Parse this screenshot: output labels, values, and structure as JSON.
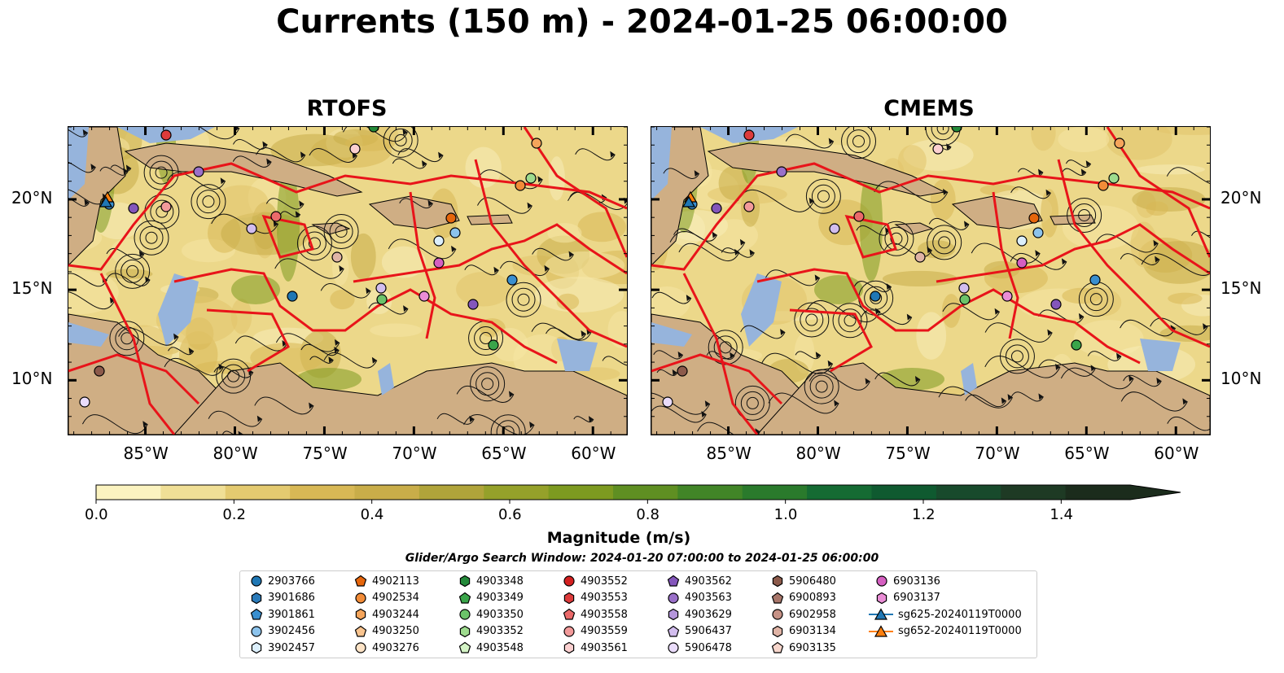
{
  "title": "Currents (150 m) - 2024-01-25 06:00:00",
  "panels": [
    {
      "title": "RTOFS"
    },
    {
      "title": "CMEMS"
    }
  ],
  "axes": {
    "lon_labels": [
      "85°W",
      "80°W",
      "75°W",
      "70°W",
      "65°W",
      "60°W"
    ],
    "lat_labels": [
      "20°N",
      "15°N",
      "10°N"
    ]
  },
  "colorbar": {
    "ticks": [
      "0.0",
      "0.2",
      "0.4",
      "0.6",
      "0.8",
      "1.0",
      "1.2",
      "1.4"
    ],
    "label": "Magnitude (m/s)",
    "colors": [
      "#fbf3c0",
      "#f0df96",
      "#e4ca70",
      "#d8b855",
      "#c9ad49",
      "#b0a43a",
      "#95a12a",
      "#7d9a20",
      "#5f8f22",
      "#418527",
      "#2a7a2c",
      "#156b33",
      "#0f5a30",
      "#184a2c",
      "#1e3a24",
      "#1b2c1c"
    ]
  },
  "search_window": "Glider/Argo Search Window: 2024-01-20 07:00:00 to 2024-01-25 06:00:00",
  "legend": [
    {
      "label": "2903766",
      "marker": "circle",
      "color": "#1f77b4"
    },
    {
      "label": "3901686",
      "marker": "hexagon",
      "color": "#2b7bba"
    },
    {
      "label": "3901861",
      "marker": "pentagon",
      "color": "#3a8fcf"
    },
    {
      "label": "3902456",
      "marker": "circle",
      "color": "#8cc3ec"
    },
    {
      "label": "3902457",
      "marker": "hexagon",
      "color": "#dceffc"
    },
    {
      "label": "4902113",
      "marker": "pentagon",
      "color": "#e6660c"
    },
    {
      "label": "4902534",
      "marker": "circle",
      "color": "#f28c38"
    },
    {
      "label": "4903244",
      "marker": "hexagon",
      "color": "#f5a55b"
    },
    {
      "label": "4903250",
      "marker": "pentagon",
      "color": "#f9c48f"
    },
    {
      "label": "4903276",
      "marker": "circle",
      "color": "#fde3c6"
    },
    {
      "label": "4903348",
      "marker": "hexagon",
      "color": "#248a3a"
    },
    {
      "label": "4903349",
      "marker": "pentagon",
      "color": "#3aa54a"
    },
    {
      "label": "4903350",
      "marker": "circle",
      "color": "#6cc36a"
    },
    {
      "label": "4903352",
      "marker": "hexagon",
      "color": "#9edb8e"
    },
    {
      "label": "4903548",
      "marker": "pentagon",
      "color": "#d4f4c6"
    },
    {
      "label": "4903552",
      "marker": "circle",
      "color": "#d42020"
    },
    {
      "label": "4903553",
      "marker": "hexagon",
      "color": "#dd3b3b"
    },
    {
      "label": "4903558",
      "marker": "pentagon",
      "color": "#eb6a6a"
    },
    {
      "label": "4903559",
      "marker": "circle",
      "color": "#f29a9a"
    },
    {
      "label": "4903561",
      "marker": "hexagon",
      "color": "#fbd0d0"
    },
    {
      "label": "4903562",
      "marker": "pentagon",
      "color": "#8456bb"
    },
    {
      "label": "4903563",
      "marker": "circle",
      "color": "#9a70c9"
    },
    {
      "label": "4903629",
      "marker": "hexagon",
      "color": "#b596dc"
    },
    {
      "label": "5906437",
      "marker": "pentagon",
      "color": "#d2bdee"
    },
    {
      "label": "5906478",
      "marker": "circle",
      "color": "#eadcfb"
    },
    {
      "label": "5906480",
      "marker": "hexagon",
      "color": "#8c5a4b"
    },
    {
      "label": "6900893",
      "marker": "pentagon",
      "color": "#a8766a"
    },
    {
      "label": "6902958",
      "marker": "circle",
      "color": "#c69286"
    },
    {
      "label": "6903134",
      "marker": "hexagon",
      "color": "#e0b4a6"
    },
    {
      "label": "6903135",
      "marker": "pentagon",
      "color": "#f7d6cc"
    },
    {
      "label": "6903136",
      "marker": "circle",
      "color": "#d55fc1"
    },
    {
      "label": "6903137",
      "marker": "hexagon",
      "color": "#ea8dd6"
    },
    {
      "label": "sg625-20240119T0000",
      "marker": "triangle-line",
      "color": "#1f77b4"
    },
    {
      "label": "sg652-20240119T0000",
      "marker": "triangle-line",
      "color": "#ff7f0e"
    }
  ]
}
